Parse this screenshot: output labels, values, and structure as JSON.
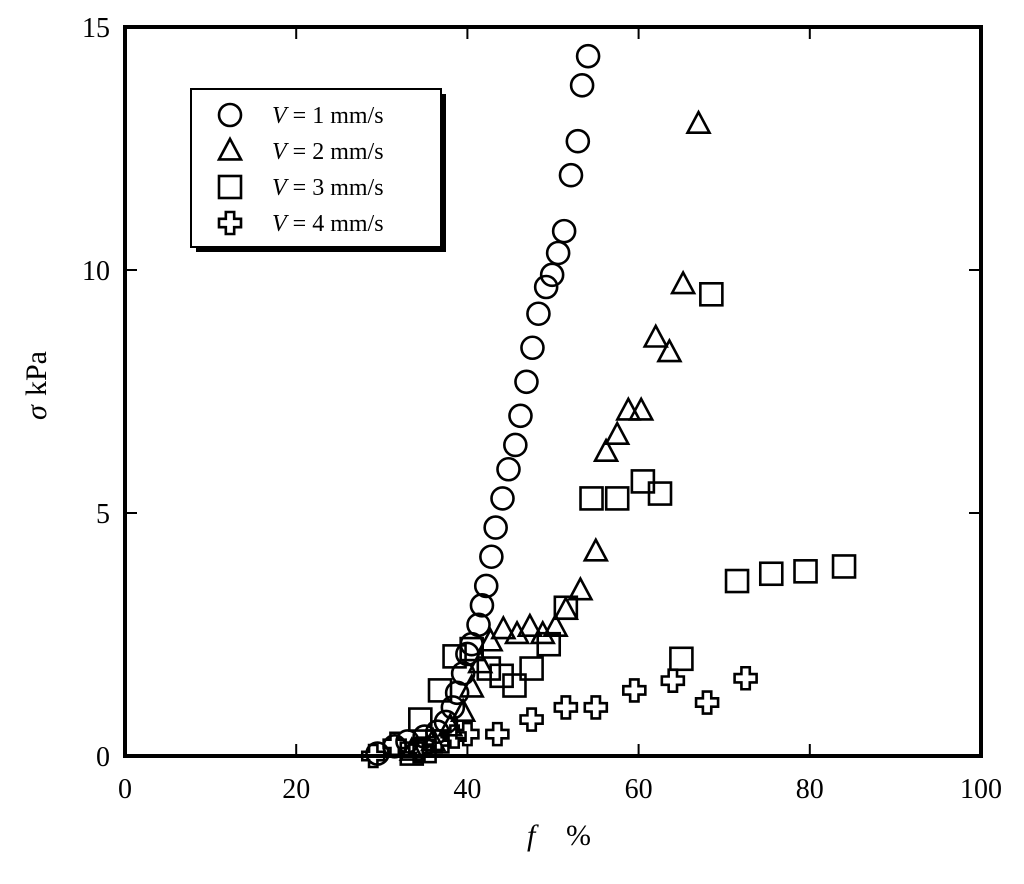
{
  "chart_data": {
    "type": "scatter",
    "title": "",
    "xlabel": {
      "symbol": "f",
      "unit": "%"
    },
    "ylabel": {
      "symbol": "σ",
      "unit": "kPa"
    },
    "xlim": [
      0,
      100
    ],
    "ylim": [
      0,
      15
    ],
    "x_ticks": [
      "0",
      "20",
      "40",
      "60",
      "80",
      "100"
    ],
    "y_ticks": [
      "0",
      "5",
      "10",
      "15"
    ],
    "grid": false,
    "legend_position": "top-left",
    "series": [
      {
        "name": "V = 1 mm/s",
        "legend_var": "V",
        "legend_rest": " = 1 mm/s",
        "marker": "circle",
        "points": [
          [
            29.5,
            0.05
          ],
          [
            31.5,
            0.2
          ],
          [
            33,
            0.3
          ],
          [
            35,
            0.4
          ],
          [
            36.5,
            0.5
          ],
          [
            37.5,
            0.7
          ],
          [
            38.3,
            1.0
          ],
          [
            38.8,
            1.3
          ],
          [
            39.5,
            1.7
          ],
          [
            40,
            2.1
          ],
          [
            40.5,
            2.3
          ],
          [
            41.3,
            2.7
          ],
          [
            41.7,
            3.1
          ],
          [
            42.2,
            3.5
          ],
          [
            42.8,
            4.1
          ],
          [
            43.3,
            4.7
          ],
          [
            44.1,
            5.3
          ],
          [
            44.8,
            5.9
          ],
          [
            45.6,
            6.4
          ],
          [
            46.2,
            7.0
          ],
          [
            46.9,
            7.7
          ],
          [
            47.6,
            8.4
          ],
          [
            48.3,
            9.1
          ],
          [
            49.2,
            9.65
          ],
          [
            49.9,
            9.9
          ],
          [
            50.6,
            10.35
          ],
          [
            51.3,
            10.8
          ],
          [
            52.1,
            11.95
          ],
          [
            52.9,
            12.65
          ],
          [
            53.4,
            13.8
          ],
          [
            54.1,
            14.4
          ]
        ]
      },
      {
        "name": "V = 2 mm/s",
        "legend_var": "V",
        "legend_rest": " = 2 mm/s",
        "marker": "triangle",
        "points": [
          [
            33.5,
            0.1
          ],
          [
            36,
            0.3
          ],
          [
            38,
            0.6
          ],
          [
            39.5,
            0.9
          ],
          [
            40.5,
            1.4
          ],
          [
            41.5,
            1.9
          ],
          [
            42.7,
            2.35
          ],
          [
            44.2,
            2.6
          ],
          [
            45.8,
            2.5
          ],
          [
            47.3,
            2.65
          ],
          [
            48.8,
            2.5
          ],
          [
            50.3,
            2.65
          ],
          [
            51.5,
            3.0
          ],
          [
            53.2,
            3.4
          ],
          [
            55,
            4.2
          ],
          [
            56.2,
            6.25
          ],
          [
            57.5,
            6.6
          ],
          [
            58.8,
            7.1
          ],
          [
            60.3,
            7.1
          ],
          [
            62,
            8.6
          ],
          [
            63.6,
            8.3
          ],
          [
            65.2,
            9.7
          ],
          [
            67,
            13.0
          ]
        ]
      },
      {
        "name": "V = 3 mm/s",
        "legend_var": "V",
        "legend_rest": " = 3 mm/s",
        "marker": "square",
        "points": [
          [
            33.5,
            0.05
          ],
          [
            35,
            0.1
          ],
          [
            36.5,
            0.3
          ],
          [
            34.5,
            0.75
          ],
          [
            36.8,
            1.35
          ],
          [
            38.5,
            2.05
          ],
          [
            40.5,
            2.2
          ],
          [
            42.5,
            1.8
          ],
          [
            44,
            1.65
          ],
          [
            45.5,
            1.45
          ],
          [
            47.5,
            1.8
          ],
          [
            49.5,
            2.3
          ],
          [
            51.5,
            3.05
          ],
          [
            54.5,
            5.3
          ],
          [
            57.5,
            5.3
          ],
          [
            60.5,
            5.65
          ],
          [
            62.5,
            5.4
          ],
          [
            65,
            2.0
          ],
          [
            68.5,
            9.5
          ],
          [
            71.5,
            3.6
          ],
          [
            75.5,
            3.75
          ],
          [
            79.5,
            3.8
          ],
          [
            84,
            3.9
          ]
        ]
      },
      {
        "name": "V = 4 mm/s",
        "legend_var": "V",
        "legend_rest": " = 4 mm/s",
        "marker": "cross",
        "points": [
          [
            29,
            0.0
          ],
          [
            31.5,
            0.25
          ],
          [
            34.5,
            0.15
          ],
          [
            36.5,
            0.3
          ],
          [
            38.5,
            0.4
          ],
          [
            40,
            0.45
          ],
          [
            43.5,
            0.45
          ],
          [
            47.5,
            0.75
          ],
          [
            51.5,
            1.0
          ],
          [
            55,
            1.0
          ],
          [
            59.5,
            1.35
          ],
          [
            64,
            1.55
          ],
          [
            68,
            1.1
          ],
          [
            72.5,
            1.6
          ]
        ]
      }
    ]
  }
}
